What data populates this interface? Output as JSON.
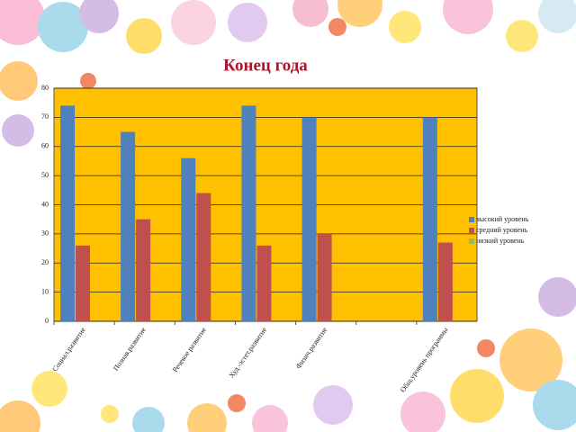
{
  "chart_data": {
    "type": "bar",
    "title": "Конец года",
    "categories": [
      "Социал.развитие",
      "Познав.развитие",
      "Речевое развитие",
      "Худ.-эстет.развитие",
      "Физич.развитие",
      null,
      "Общ.уровень программы"
    ],
    "series": [
      {
        "name": "высокий уровень",
        "color": "#4f81bd",
        "values": [
          74,
          65,
          56,
          74,
          70,
          null,
          70
        ]
      },
      {
        "name": "средний уровень",
        "color": "#c0504d",
        "values": [
          26,
          35,
          44,
          26,
          30,
          null,
          27
        ]
      },
      {
        "name": "низкий уровень",
        "color": "#9bbb59",
        "values": [
          null,
          null,
          null,
          null,
          null,
          null,
          null
        ]
      }
    ],
    "ylim": [
      0,
      80
    ],
    "yticks": [
      0,
      10,
      20,
      30,
      40,
      50,
      60,
      70,
      80
    ],
    "grid": true,
    "plot_background": "#ffc000",
    "legend": "right"
  }
}
